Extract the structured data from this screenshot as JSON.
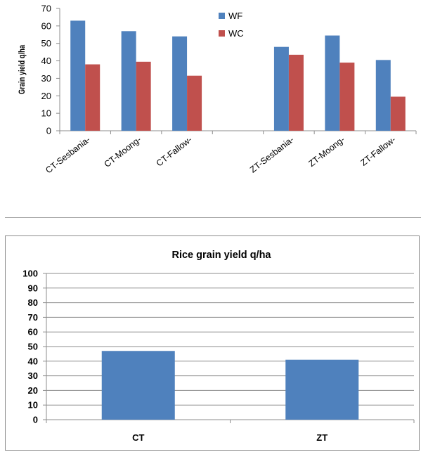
{
  "chart_data": [
    {
      "type": "bar",
      "title": "",
      "ylabel": "Grain yield q/ha",
      "xlabel": "",
      "ylim": [
        0,
        70
      ],
      "y_ticks": [
        "0",
        "10",
        "20",
        "30",
        "40",
        "50",
        "60",
        "70"
      ],
      "categories": [
        "CT-Sesbania-",
        "CT-Moong-",
        "CT-Fallow-",
        "",
        "ZT-Sesbania-",
        "ZT-Moong-",
        "ZT-Fallow-"
      ],
      "series": [
        {
          "name": "WF",
          "color": "#4f81bd",
          "values": [
            63,
            57,
            54,
            null,
            48,
            54.5,
            40.5
          ]
        },
        {
          "name": "WC",
          "color": "#c0504d",
          "values": [
            38,
            39.5,
            31.5,
            null,
            43.5,
            39,
            19.5
          ]
        }
      ],
      "legend": "top-center",
      "grid": false
    },
    {
      "type": "bar",
      "title": "Rice grain yield q/ha",
      "xlabel": "",
      "ylabel": "",
      "ylim": [
        0,
        100
      ],
      "y_ticks": [
        "0",
        "10",
        "20",
        "30",
        "40",
        "50",
        "60",
        "70",
        "80",
        "90",
        "100"
      ],
      "categories": [
        "CT",
        "ZT"
      ],
      "series": [
        {
          "color": "#4f81bd",
          "values": [
            47,
            41
          ]
        }
      ],
      "legend": "none",
      "grid": true
    }
  ]
}
